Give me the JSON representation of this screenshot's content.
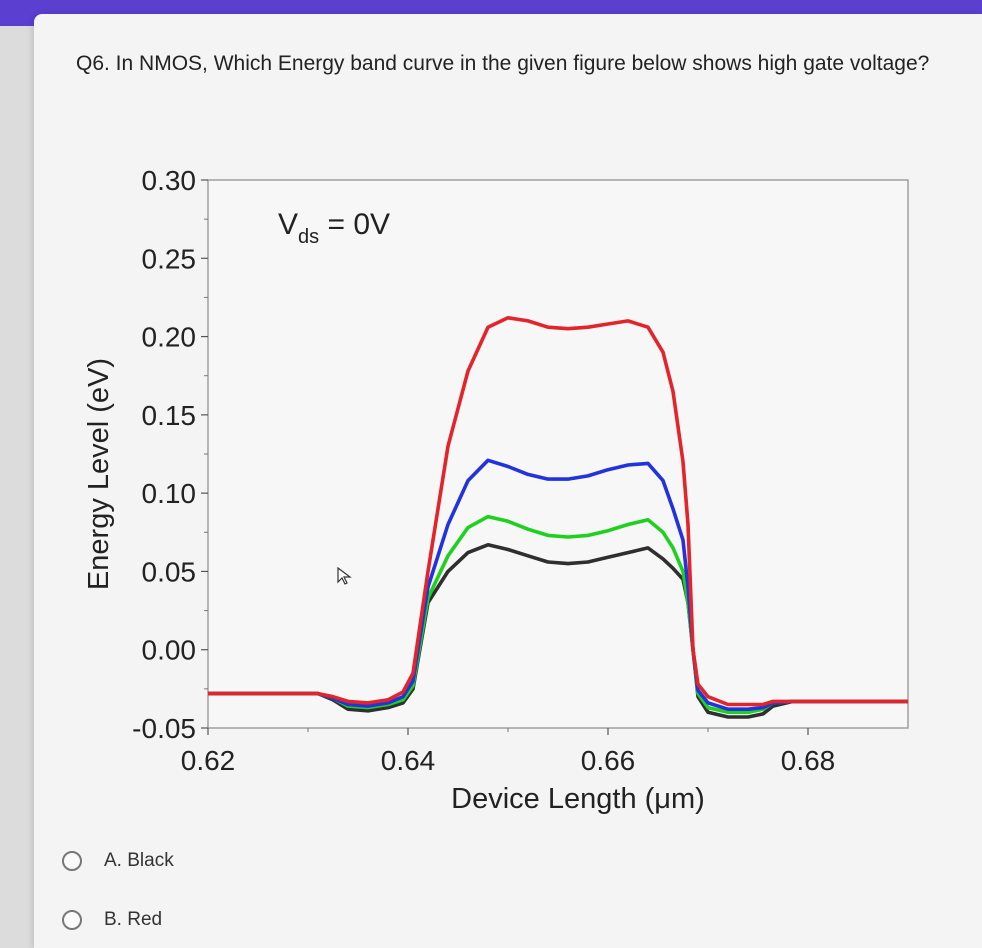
{
  "question": {
    "text": "Q6. In NMOS, Which Energy band curve in the given figure below shows high gate voltage?"
  },
  "options": [
    {
      "label": "A. Black"
    },
    {
      "label": "B. Red"
    }
  ],
  "icons": {
    "radio": "radio-circle-icon",
    "cursor": "mouse-pointer-icon"
  },
  "chart_data": {
    "type": "line",
    "annotation": {
      "main": "V",
      "sub": "ds",
      "rest": " = 0V"
    },
    "xlabel": "Device Length (μm)",
    "ylabel": "Energy Level (eV)",
    "xlim": [
      0.62,
      0.69
    ],
    "ylim": [
      -0.05,
      0.3
    ],
    "x_ticks": [
      0.62,
      0.64,
      0.66,
      0.68
    ],
    "x_tick_labels": [
      "0.62",
      "0.64",
      "0.66",
      "0.68"
    ],
    "y_ticks": [
      0.3,
      0.25,
      0.2,
      0.15,
      0.1,
      0.05,
      0.0,
      -0.05
    ],
    "y_tick_labels": [
      "0.30",
      "0.25",
      "0.20",
      "0.15",
      "0.10",
      "0.05",
      "0.00",
      "-0.05"
    ],
    "grid": false,
    "series": [
      {
        "color": "#2f2f2f",
        "x": [
          0.62,
          0.631,
          0.6325,
          0.634,
          0.636,
          0.638,
          0.6395,
          0.6405,
          0.642,
          0.644,
          0.646,
          0.648,
          0.65,
          0.652,
          0.654,
          0.656,
          0.658,
          0.66,
          0.662,
          0.664,
          0.6655,
          0.6665,
          0.6675,
          0.668,
          0.6685,
          0.669,
          0.67,
          0.672,
          0.674,
          0.6755,
          0.6765,
          0.6785,
          0.69
        ],
        "y": [
          -0.028,
          -0.028,
          -0.032,
          -0.038,
          -0.039,
          -0.037,
          -0.034,
          -0.025,
          0.03,
          0.05,
          0.062,
          0.067,
          0.064,
          0.06,
          0.056,
          0.055,
          0.056,
          0.059,
          0.062,
          0.065,
          0.058,
          0.052,
          0.045,
          0.03,
          0.0,
          -0.03,
          -0.04,
          -0.043,
          -0.043,
          -0.041,
          -0.036,
          -0.033,
          -0.033
        ]
      },
      {
        "color": "#1fd11f",
        "x": [
          0.62,
          0.631,
          0.6325,
          0.634,
          0.636,
          0.638,
          0.6395,
          0.6405,
          0.642,
          0.644,
          0.646,
          0.648,
          0.65,
          0.652,
          0.654,
          0.656,
          0.658,
          0.66,
          0.662,
          0.664,
          0.6655,
          0.6665,
          0.6675,
          0.668,
          0.6685,
          0.669,
          0.67,
          0.672,
          0.674,
          0.6755,
          0.6765,
          0.6785,
          0.69
        ],
        "y": [
          -0.028,
          -0.028,
          -0.031,
          -0.036,
          -0.037,
          -0.035,
          -0.032,
          -0.023,
          0.033,
          0.06,
          0.078,
          0.085,
          0.082,
          0.077,
          0.073,
          0.072,
          0.073,
          0.076,
          0.08,
          0.083,
          0.075,
          0.065,
          0.05,
          0.03,
          0.0,
          -0.028,
          -0.037,
          -0.04,
          -0.04,
          -0.038,
          -0.034,
          -0.033,
          -0.033
        ]
      },
      {
        "color": "#2233dd",
        "x": [
          0.62,
          0.631,
          0.6325,
          0.634,
          0.636,
          0.638,
          0.6395,
          0.6405,
          0.642,
          0.644,
          0.646,
          0.648,
          0.65,
          0.652,
          0.654,
          0.656,
          0.658,
          0.66,
          0.662,
          0.664,
          0.6655,
          0.6665,
          0.6675,
          0.668,
          0.6685,
          0.669,
          0.67,
          0.672,
          0.674,
          0.6755,
          0.6765,
          0.6785,
          0.69
        ],
        "y": [
          -0.028,
          -0.028,
          -0.031,
          -0.035,
          -0.036,
          -0.034,
          -0.03,
          -0.02,
          0.04,
          0.08,
          0.108,
          0.121,
          0.117,
          0.112,
          0.109,
          0.109,
          0.111,
          0.115,
          0.118,
          0.119,
          0.108,
          0.09,
          0.07,
          0.04,
          0.0,
          -0.026,
          -0.034,
          -0.038,
          -0.038,
          -0.037,
          -0.034,
          -0.033,
          -0.033
        ]
      },
      {
        "color": "#e3242b",
        "x": [
          0.62,
          0.631,
          0.6325,
          0.634,
          0.636,
          0.638,
          0.6395,
          0.6405,
          0.642,
          0.644,
          0.646,
          0.648,
          0.65,
          0.652,
          0.654,
          0.656,
          0.658,
          0.66,
          0.662,
          0.664,
          0.6655,
          0.6665,
          0.6675,
          0.668,
          0.6685,
          0.669,
          0.67,
          0.672,
          0.674,
          0.6755,
          0.6765,
          0.6785,
          0.69
        ],
        "y": [
          -0.028,
          -0.028,
          -0.03,
          -0.033,
          -0.034,
          -0.032,
          -0.027,
          -0.015,
          0.05,
          0.13,
          0.178,
          0.206,
          0.212,
          0.21,
          0.206,
          0.205,
          0.206,
          0.208,
          0.21,
          0.206,
          0.19,
          0.165,
          0.12,
          0.08,
          0.0,
          -0.022,
          -0.03,
          -0.035,
          -0.035,
          -0.035,
          -0.033,
          -0.033,
          -0.033
        ]
      }
    ]
  }
}
